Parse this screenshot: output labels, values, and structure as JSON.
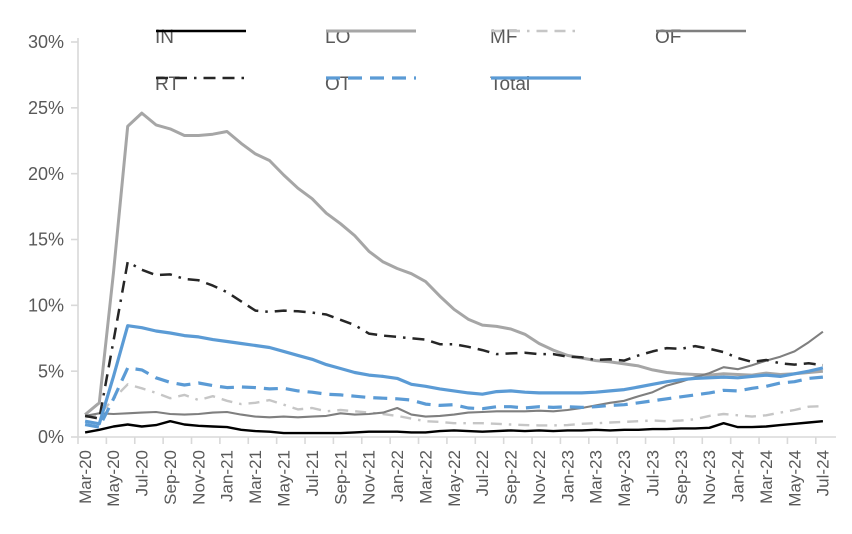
{
  "chart_data": {
    "type": "line",
    "title": "",
    "xlabel": "",
    "ylabel": "",
    "ylim": [
      0,
      30
    ],
    "grid": false,
    "legend_position": "top",
    "y_tick_labels": [
      "0%",
      "5%",
      "10%",
      "15%",
      "20%",
      "25%",
      "30%"
    ],
    "x_tick_labels": [
      "Mar-20",
      "May-20",
      "Jul-20",
      "Sep-20",
      "Nov-20",
      "Jan-21",
      "Mar-21",
      "May-21",
      "Jul-21",
      "Sep-21",
      "Nov-21",
      "Jan-22",
      "Mar-22",
      "May-22",
      "Jul-22",
      "Sep-22",
      "Nov-22",
      "Jan-23",
      "Mar-23",
      "May-23",
      "Jul-23",
      "Sep-23",
      "Nov-23",
      "Jan-24",
      "Mar-24",
      "May-24",
      "Jul-24"
    ],
    "months_per_tick_label": 2,
    "x_months": [
      "Mar-20",
      "Apr-20",
      "May-20",
      "Jun-20",
      "Jul-20",
      "Aug-20",
      "Sep-20",
      "Oct-20",
      "Nov-20",
      "Dec-20",
      "Jan-21",
      "Feb-21",
      "Mar-21",
      "Apr-21",
      "May-21",
      "Jun-21",
      "Jul-21",
      "Aug-21",
      "Sep-21",
      "Oct-21",
      "Nov-21",
      "Dec-21",
      "Jan-22",
      "Feb-22",
      "Mar-22",
      "Apr-22",
      "May-22",
      "Jun-22",
      "Jul-22",
      "Aug-22",
      "Sep-22",
      "Oct-22",
      "Nov-22",
      "Dec-22",
      "Jan-23",
      "Feb-23",
      "Mar-23",
      "Apr-23",
      "May-23",
      "Jun-23",
      "Jul-23",
      "Aug-23",
      "Sep-23",
      "Oct-23",
      "Nov-23",
      "Dec-23",
      "Jan-24",
      "Feb-24",
      "Mar-24",
      "Apr-24",
      "May-24",
      "Jun-24",
      "Jul-24"
    ],
    "unit": "percent",
    "series": [
      {
        "name": "IN",
        "color": "#000000",
        "dash": "",
        "width": 2.4,
        "legend_row": 1,
        "legend_col": 1,
        "values": [
          0.35,
          0.55,
          0.8,
          0.95,
          0.8,
          0.9,
          1.2,
          0.95,
          0.85,
          0.8,
          0.75,
          0.55,
          0.45,
          0.4,
          0.3,
          0.3,
          0.3,
          0.3,
          0.3,
          0.35,
          0.4,
          0.4,
          0.4,
          0.35,
          0.35,
          0.45,
          0.5,
          0.45,
          0.4,
          0.45,
          0.5,
          0.45,
          0.5,
          0.45,
          0.5,
          0.5,
          0.55,
          0.5,
          0.55,
          0.55,
          0.6,
          0.6,
          0.65,
          0.65,
          0.7,
          1.05,
          0.75,
          0.75,
          0.8,
          0.9,
          1.0,
          1.1,
          1.2
        ]
      },
      {
        "name": "LO",
        "color": "#a6a6a6",
        "dash": "",
        "width": 3,
        "legend_row": 1,
        "legend_col": 2,
        "values": [
          1.7,
          2.6,
          12.5,
          23.6,
          24.6,
          23.7,
          23.4,
          22.9,
          22.9,
          23.0,
          23.2,
          22.3,
          21.5,
          21.0,
          19.9,
          18.9,
          18.1,
          17.0,
          16.2,
          15.3,
          14.1,
          13.3,
          12.8,
          12.4,
          11.8,
          10.7,
          9.7,
          8.95,
          8.5,
          8.4,
          8.2,
          7.8,
          7.1,
          6.6,
          6.2,
          6.0,
          5.8,
          5.7,
          5.55,
          5.4,
          5.1,
          4.9,
          4.8,
          4.75,
          4.7,
          4.8,
          4.75,
          4.7,
          4.85,
          4.75,
          4.8,
          4.9,
          5.0
        ]
      },
      {
        "name": "MF",
        "color": "#c6c6c6",
        "dash": "11 7 11 7 2.5 7",
        "width": 2.4,
        "legend_row": 1,
        "legend_col": 3,
        "values": [
          1.5,
          1.7,
          2.9,
          4.0,
          3.7,
          3.35,
          2.95,
          3.2,
          2.8,
          3.1,
          2.75,
          2.5,
          2.6,
          2.8,
          2.45,
          2.1,
          2.2,
          1.95,
          2.05,
          1.95,
          1.85,
          1.75,
          1.6,
          1.4,
          1.2,
          1.15,
          1.05,
          1.05,
          1.05,
          1.0,
          0.95,
          0.9,
          0.88,
          0.88,
          0.9,
          1.0,
          1.05,
          1.1,
          1.15,
          1.2,
          1.25,
          1.2,
          1.25,
          1.35,
          1.6,
          1.75,
          1.65,
          1.55,
          1.65,
          1.85,
          2.05,
          2.3,
          2.35
        ]
      },
      {
        "name": "OF",
        "color": "#7f7f7f",
        "dash": "",
        "width": 2.1,
        "legend_row": 1,
        "legend_col": 4,
        "values": [
          1.6,
          1.8,
          1.75,
          1.8,
          1.85,
          1.9,
          1.75,
          1.7,
          1.75,
          1.85,
          1.9,
          1.7,
          1.55,
          1.5,
          1.55,
          1.5,
          1.55,
          1.6,
          1.8,
          1.7,
          1.75,
          1.85,
          2.2,
          1.7,
          1.55,
          1.6,
          1.7,
          1.85,
          1.9,
          1.95,
          1.95,
          1.95,
          2.0,
          1.95,
          2.05,
          2.2,
          2.4,
          2.6,
          2.75,
          3.1,
          3.4,
          3.9,
          4.2,
          4.55,
          4.85,
          5.3,
          5.15,
          5.45,
          5.8,
          6.1,
          6.5,
          7.2,
          8.0
        ]
      },
      {
        "name": "RT",
        "color": "#262626",
        "dash": "12 7 12 7 2.5 7",
        "width": 2.5,
        "legend_row": 2,
        "legend_col": 1,
        "values": [
          1.6,
          1.4,
          7.3,
          13.3,
          12.7,
          12.3,
          12.35,
          12.0,
          11.9,
          11.5,
          11.0,
          10.3,
          9.6,
          9.5,
          9.6,
          9.55,
          9.45,
          9.3,
          8.9,
          8.5,
          7.85,
          7.7,
          7.6,
          7.5,
          7.4,
          7.05,
          7.05,
          6.85,
          6.6,
          6.3,
          6.35,
          6.4,
          6.3,
          6.3,
          6.1,
          6.05,
          5.85,
          5.9,
          5.8,
          6.2,
          6.5,
          6.75,
          6.7,
          6.9,
          6.7,
          6.45,
          6.0,
          5.7,
          5.85,
          5.6,
          5.5,
          5.6,
          5.45
        ]
      },
      {
        "name": "OT",
        "color": "#5b9bd5",
        "dash": "14 8",
        "width": 3.2,
        "legend_row": 2,
        "legend_col": 2,
        "values": [
          0.95,
          0.75,
          2.9,
          5.25,
          5.1,
          4.5,
          4.15,
          3.95,
          4.1,
          3.9,
          3.75,
          3.8,
          3.75,
          3.65,
          3.7,
          3.5,
          3.4,
          3.25,
          3.2,
          3.1,
          3.0,
          2.95,
          2.9,
          2.8,
          2.5,
          2.4,
          2.45,
          2.2,
          2.15,
          2.3,
          2.3,
          2.2,
          2.3,
          2.25,
          2.3,
          2.25,
          2.3,
          2.4,
          2.45,
          2.6,
          2.75,
          2.9,
          3.05,
          3.2,
          3.35,
          3.55,
          3.5,
          3.7,
          3.85,
          4.1,
          4.2,
          4.45,
          4.55
        ]
      },
      {
        "name": "Total",
        "color": "#5b9bd5",
        "dash": "",
        "width": 3.2,
        "legend_row": 2,
        "legend_col": 3,
        "values": [
          1.2,
          1.0,
          4.6,
          8.45,
          8.3,
          8.05,
          7.9,
          7.7,
          7.6,
          7.4,
          7.25,
          7.1,
          6.95,
          6.8,
          6.5,
          6.2,
          5.9,
          5.5,
          5.2,
          4.9,
          4.7,
          4.6,
          4.45,
          4.0,
          3.85,
          3.65,
          3.5,
          3.35,
          3.25,
          3.45,
          3.5,
          3.4,
          3.35,
          3.35,
          3.35,
          3.35,
          3.4,
          3.5,
          3.6,
          3.8,
          4.0,
          4.2,
          4.35,
          4.45,
          4.5,
          4.55,
          4.5,
          4.6,
          4.7,
          4.6,
          4.8,
          5.0,
          5.25
        ]
      }
    ],
    "style": {
      "axis_line_color": "#d9d9d9",
      "tick_color": "#bfbfbf",
      "label_color": "#595959",
      "y_label_font_px": 18,
      "x_label_font_px": 17,
      "legend_font_px": 19
    }
  }
}
